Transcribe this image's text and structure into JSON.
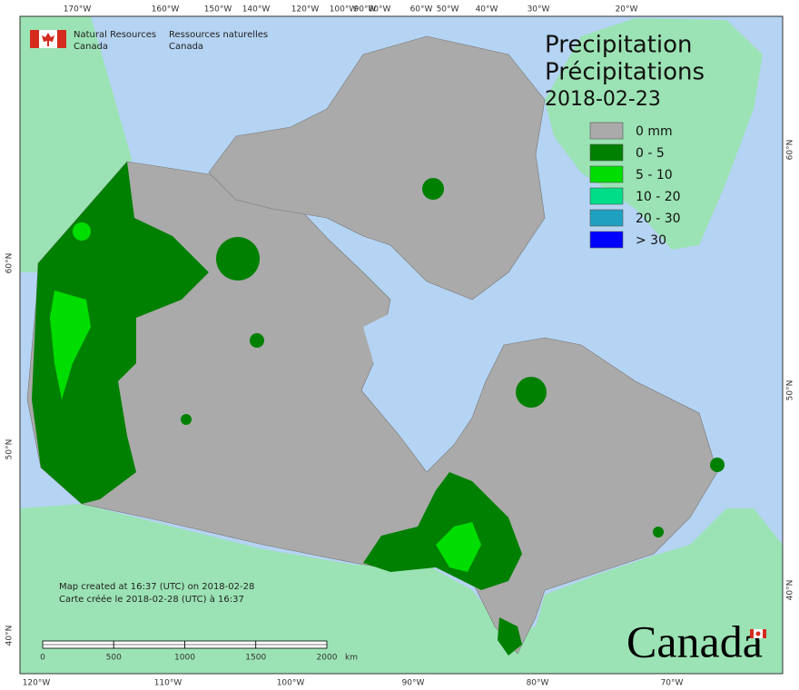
{
  "org_en": [
    "Natural Resources",
    "Canada"
  ],
  "org_fr": [
    "Ressources naturelles",
    "Canada"
  ],
  "title": [
    "Precipitation",
    "Précipitations"
  ],
  "date": "2018-02-23",
  "legend": [
    {
      "label": "0 mm",
      "color": "#aaaaaa"
    },
    {
      "label": "0 - 5",
      "color": "#008000"
    },
    {
      "label": "5 - 10",
      "color": "#00dd00"
    },
    {
      "label": "10 - 20",
      "color": "#00dd88"
    },
    {
      "label": "20 - 30",
      "color": "#1fa0c0"
    },
    {
      "label": "> 30",
      "color": "#0000ff"
    }
  ],
  "top_labels": [
    "170°W",
    "160°W",
    "150°W",
    "140°W",
    "120°W",
    "100°W",
    "90°W",
    "80°W",
    "60°W",
    "50°W",
    "40°W",
    "30°W",
    "20°W"
  ],
  "bottom_labels": [
    "120°W",
    "110°W",
    "100°W",
    "90°W",
    "80°W",
    "70°W"
  ],
  "left_labels": [
    "60°N",
    "50°N",
    "40°N"
  ],
  "right_labels": [
    "60°N",
    "50°N",
    "40°N"
  ],
  "notes": [
    "Map created at 16:37 (UTC) on 2018-02-28",
    "Carte créée le 2018-02-28 (UTC) à 16:37"
  ],
  "scale": {
    "ticks": [
      "0",
      "500",
      "1000",
      "1500",
      "2000"
    ],
    "unit": "km"
  },
  "wordmark": "Canada"
}
